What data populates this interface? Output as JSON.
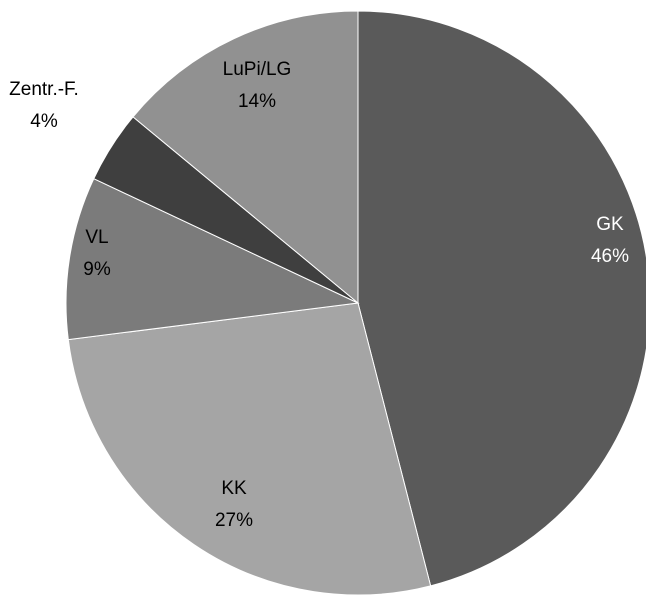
{
  "chart_data": {
    "type": "pie",
    "title": "",
    "start_angle_deg": 0,
    "direction": "clockwise",
    "slices": [
      {
        "label": "GK",
        "value": 46,
        "percent_label": "46%",
        "color": "#5a5a5a",
        "text_color": "#ffffff"
      },
      {
        "label": "KK",
        "value": 27,
        "percent_label": "27%",
        "color": "#a5a5a5",
        "text_color": "#000000"
      },
      {
        "label": "VL",
        "value": 9,
        "percent_label": "9%",
        "color": "#7b7b7b",
        "text_color": "#000000"
      },
      {
        "label": "Zentr.-F.",
        "value": 4,
        "percent_label": "4%",
        "color": "#3f3f3f",
        "text_color": "#000000"
      },
      {
        "label": "LuPi/LG",
        "value": 14,
        "percent_label": "14%",
        "color": "#919191",
        "text_color": "#000000"
      }
    ]
  }
}
